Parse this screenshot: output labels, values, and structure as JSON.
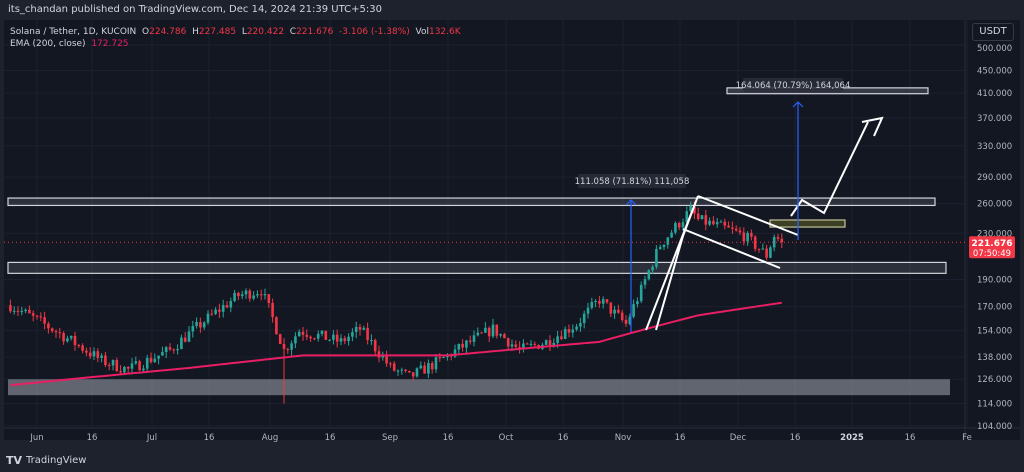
{
  "header": {
    "published": "its_chandan published on TradingView.com, Dec 14, 2024 21:39 UTC+5:30"
  },
  "legend": {
    "symbol": "Solana / Tether, 1D, KUCOIN",
    "o_label": "O",
    "o": "224.786",
    "h_label": "H",
    "h": "227.485",
    "l_label": "L",
    "l": "220.422",
    "c_label": "C",
    "c": "221.676",
    "change": "-3.106 (-1.38%)",
    "vol_label": "Vol",
    "vol": "132.6K",
    "ema_label": "EMA (200, close)",
    "ema": "172.725"
  },
  "currency": "USDT",
  "price_axis": {
    "ticks": [
      "500.000",
      "450.000",
      "410.000",
      "370.000",
      "330.000",
      "290.000",
      "260.000",
      "230.000",
      "190.000",
      "170.000",
      "154.000",
      "138.000",
      "126.000",
      "114.000",
      "104.000"
    ],
    "last_price": "221.676",
    "countdown": "07:50:49"
  },
  "time_axis": {
    "ticks": [
      "Jun",
      "16",
      "Jul",
      "16",
      "Aug",
      "16",
      "Sep",
      "16",
      "Oct",
      "16",
      "Nov",
      "16",
      "Dec",
      "16",
      "2025",
      "16",
      "Fe"
    ]
  },
  "annotations": {
    "measure1": "111.058 (71.81%) 111,058",
    "measure2": "164.064 (70.79%) 164,064"
  },
  "colors": {
    "up": "#26a69a",
    "down": "#f23645",
    "ema": "#e91e63",
    "bg": "#131722"
  },
  "footer": {
    "brand": "TradingView"
  },
  "chart_data": {
    "type": "candlestick",
    "title": "Solana / Tether, 1D, KUCOIN",
    "x_unit": "days since Jun 1, 2024",
    "close_anchors": [
      [
        -7,
        171
      ],
      [
        17,
        136
      ],
      [
        24,
        131
      ],
      [
        35,
        142
      ],
      [
        53,
        178
      ],
      [
        59,
        182
      ],
      [
        65,
        142
      ],
      [
        69,
        154
      ],
      [
        80,
        147
      ],
      [
        85,
        155
      ],
      [
        93,
        132
      ],
      [
        98,
        127
      ],
      [
        106,
        136
      ],
      [
        114,
        147
      ],
      [
        120,
        155
      ],
      [
        127,
        142
      ],
      [
        134,
        147
      ],
      [
        142,
        158
      ],
      [
        148,
        175
      ],
      [
        155,
        158
      ],
      [
        159,
        182
      ],
      [
        164,
        219
      ],
      [
        172,
        253
      ],
      [
        174,
        243
      ],
      [
        180,
        236
      ],
      [
        186,
        228
      ],
      [
        192,
        210
      ],
      [
        194,
        228
      ],
      [
        196,
        221.676
      ]
    ],
    "ema_anchors": [
      [
        -7,
        123
      ],
      [
        40,
        132
      ],
      [
        70,
        139
      ],
      [
        108,
        139
      ],
      [
        148,
        147
      ],
      [
        174,
        164
      ],
      [
        196,
        172.725
      ]
    ],
    "zones": [
      [
        258,
        266
      ],
      [
        195,
        204
      ],
      [
        118,
        126
      ]
    ],
    "target_zone": [
      409,
      419
    ],
    "ylim": [
      104,
      500
    ],
    "yscale": "log"
  }
}
